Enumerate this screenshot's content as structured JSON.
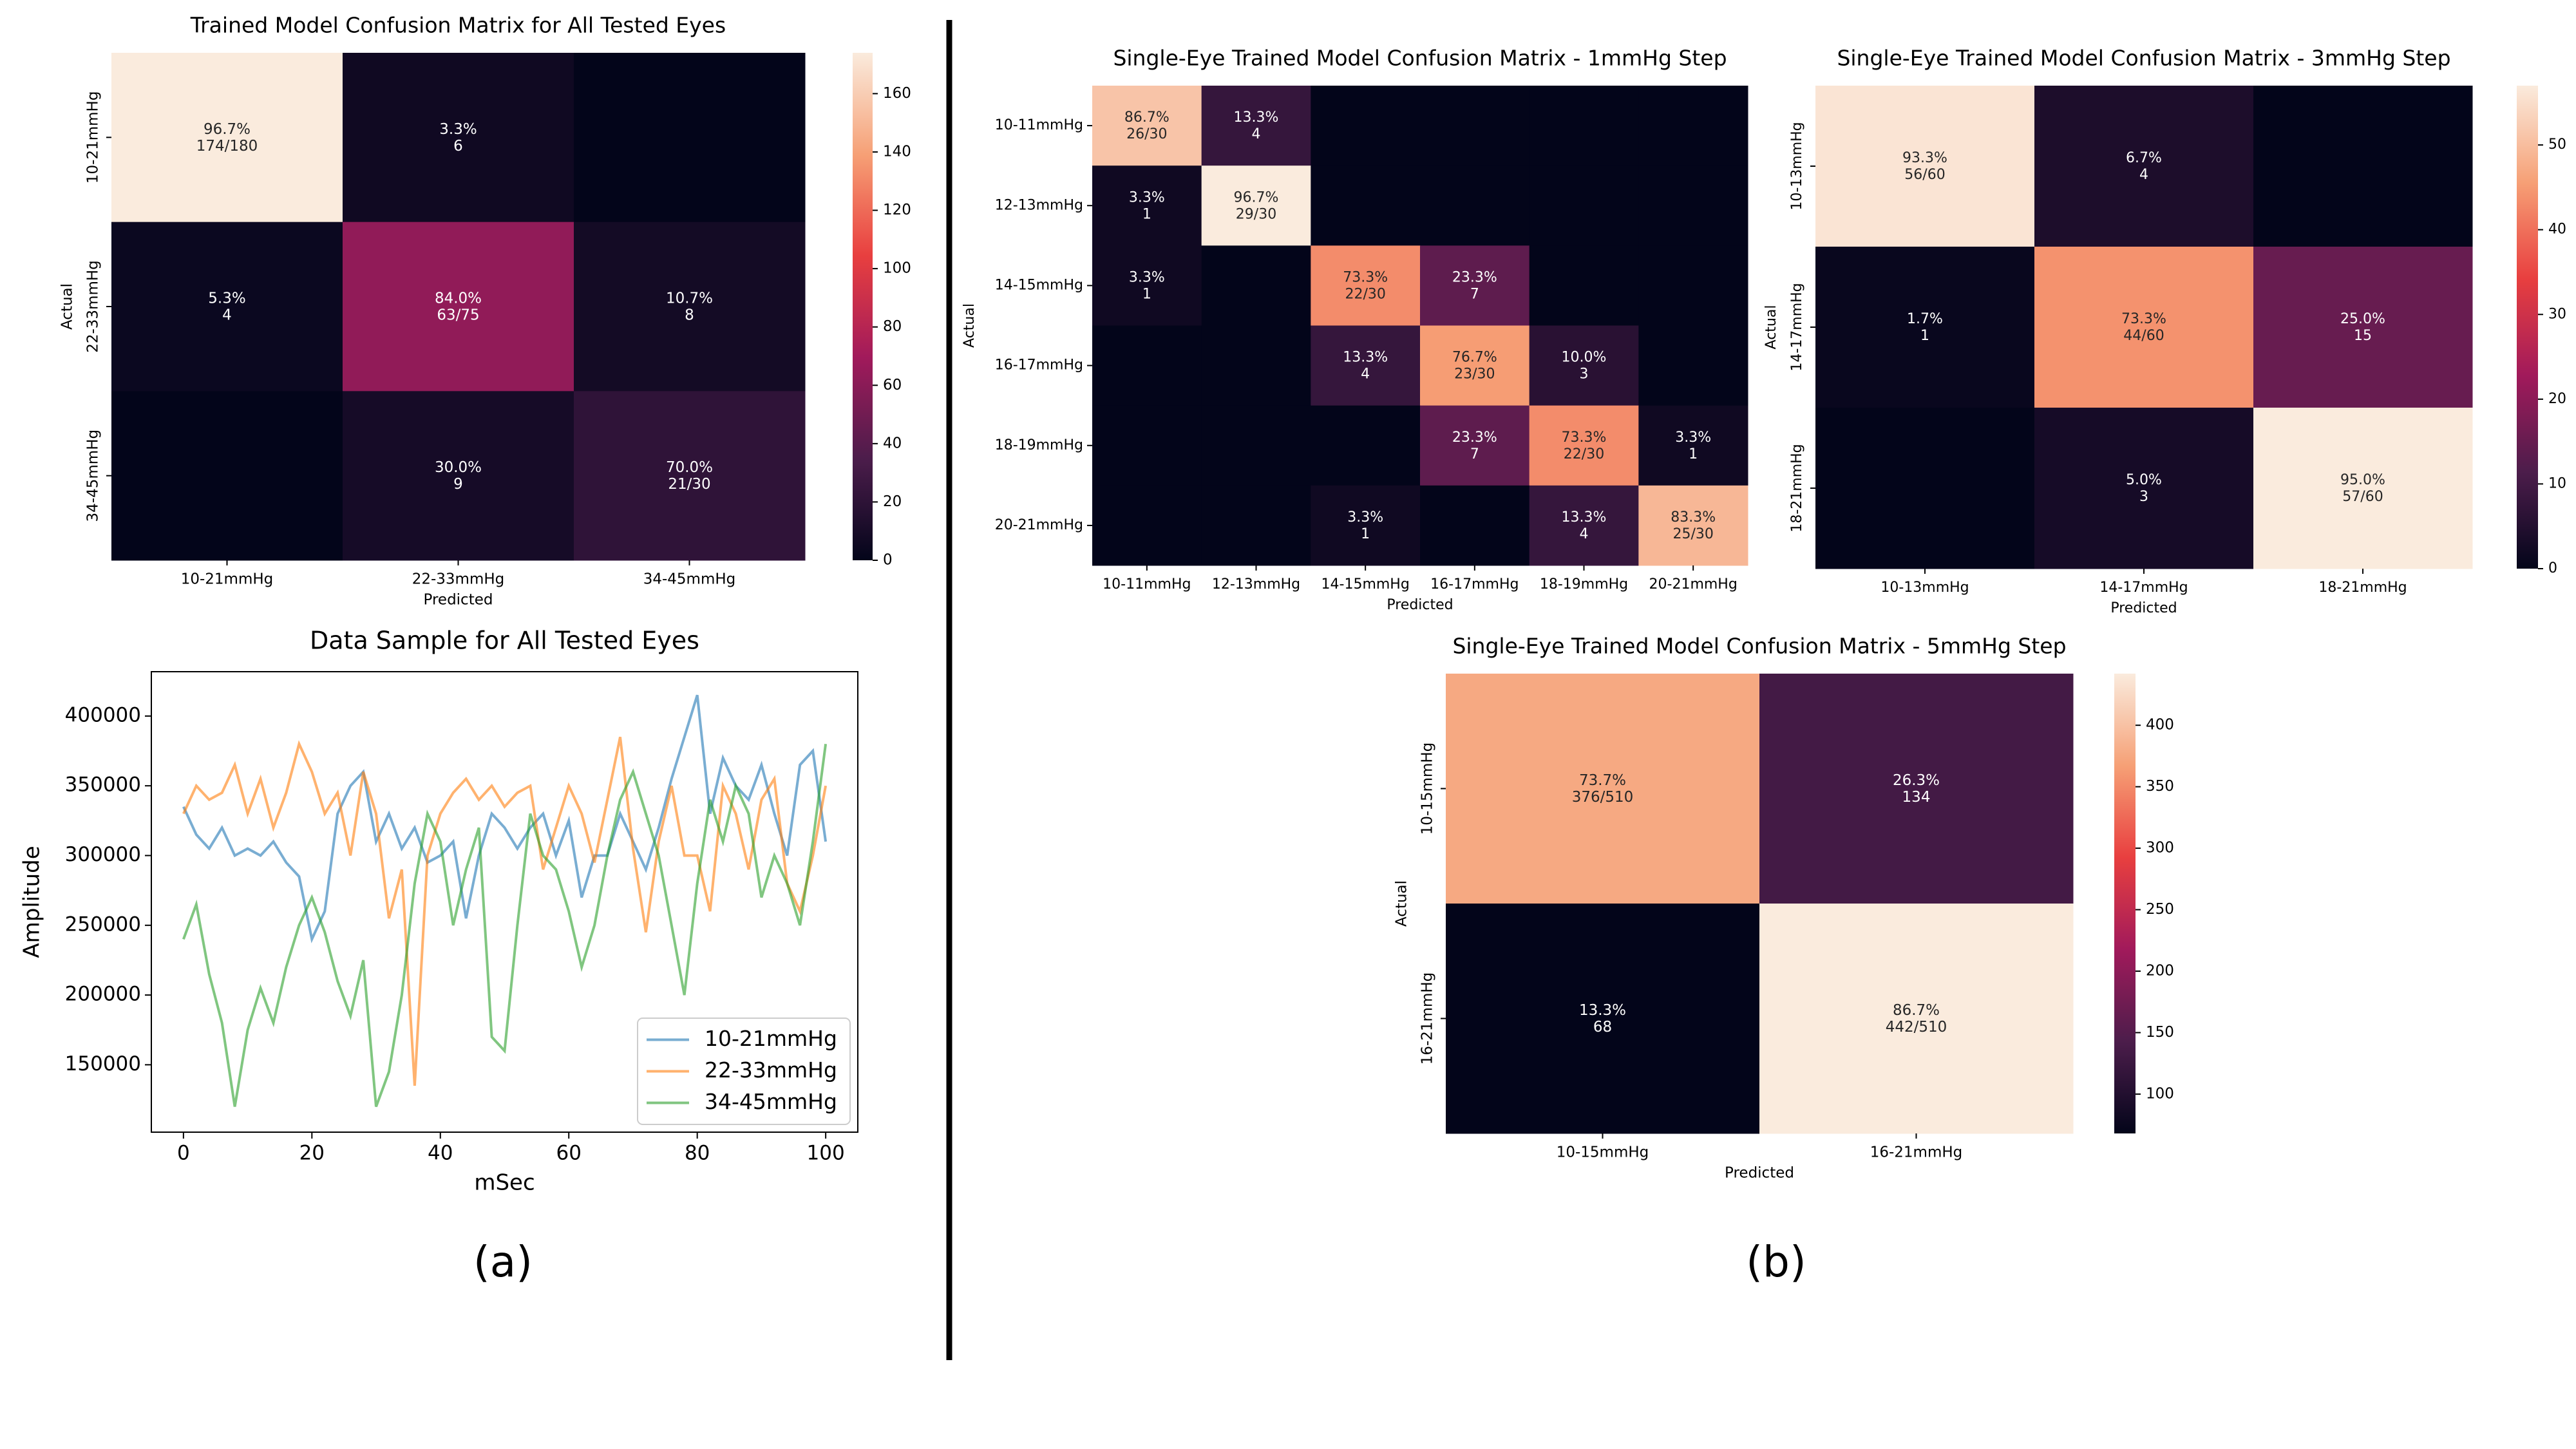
{
  "chart_data": [
    {
      "type": "heatmap",
      "title": "Trained Model Confusion Matrix for All Tested Eyes",
      "xlabel": "Predicted",
      "ylabel": "Actual",
      "x_categories": [
        "10-21mmHg",
        "22-33mmHg",
        "34-45mmHg"
      ],
      "y_categories": [
        "10-21mmHg",
        "22-33mmHg",
        "34-45mmHg"
      ],
      "values": [
        [
          174,
          6,
          0
        ],
        [
          4,
          63,
          8
        ],
        [
          0,
          9,
          21
        ]
      ],
      "value_labels": [
        [
          "174/180",
          "6",
          null
        ],
        [
          "4",
          "63/75",
          "8"
        ],
        [
          null,
          "9",
          "21/30"
        ]
      ],
      "percent_labels": [
        [
          "96.7%",
          "3.3%",
          null
        ],
        [
          "5.3%",
          "84.0%",
          "10.7%"
        ],
        [
          null,
          "30.0%",
          "70.0%"
        ]
      ],
      "colormap": "rocket",
      "clim": [
        0,
        174
      ],
      "cticks": [
        0,
        20,
        40,
        60,
        80,
        100,
        120,
        140,
        160
      ],
      "colorbar": true,
      "ytick_rotation": 90
    },
    {
      "type": "line",
      "title": "Data Sample for All Tested Eyes",
      "xlabel": "mSec",
      "ylabel": "Amplitude",
      "x": [
        0,
        2,
        4,
        6,
        8,
        10,
        12,
        14,
        16,
        18,
        20,
        22,
        24,
        26,
        28,
        30,
        32,
        34,
        36,
        38,
        40,
        42,
        44,
        46,
        48,
        50,
        52,
        54,
        56,
        58,
        60,
        62,
        64,
        66,
        68,
        70,
        72,
        74,
        76,
        78,
        80,
        82,
        84,
        86,
        88,
        90,
        92,
        94,
        96,
        98,
        100
      ],
      "series": [
        {
          "name": "10-21mmHg",
          "color": "#1f77b4",
          "values": [
            335000,
            315000,
            305000,
            320000,
            300000,
            305000,
            300000,
            310000,
            295000,
            285000,
            240000,
            260000,
            330000,
            350000,
            360000,
            310000,
            330000,
            305000,
            320000,
            295000,
            300000,
            310000,
            255000,
            300000,
            330000,
            320000,
            305000,
            320000,
            330000,
            300000,
            325000,
            270000,
            300000,
            300000,
            330000,
            310000,
            290000,
            320000,
            355000,
            385000,
            415000,
            330000,
            370000,
            350000,
            340000,
            365000,
            330000,
            300000,
            365000,
            375000,
            310000
          ]
        },
        {
          "name": "22-33mmHg",
          "color": "#ff7f0e",
          "values": [
            330000,
            350000,
            340000,
            345000,
            365000,
            330000,
            355000,
            320000,
            345000,
            380000,
            360000,
            330000,
            345000,
            300000,
            360000,
            330000,
            255000,
            290000,
            135000,
            300000,
            330000,
            345000,
            355000,
            340000,
            350000,
            335000,
            345000,
            350000,
            290000,
            320000,
            350000,
            330000,
            295000,
            340000,
            385000,
            305000,
            245000,
            310000,
            350000,
            300000,
            300000,
            260000,
            350000,
            330000,
            290000,
            340000,
            355000,
            280000,
            260000,
            300000,
            350000
          ]
        },
        {
          "name": "34-45mmHg",
          "color": "#2ca02c",
          "values": [
            240000,
            265000,
            215000,
            180000,
            120000,
            175000,
            205000,
            180000,
            220000,
            250000,
            270000,
            245000,
            210000,
            185000,
            225000,
            120000,
            145000,
            200000,
            280000,
            330000,
            310000,
            250000,
            290000,
            320000,
            170000,
            160000,
            250000,
            330000,
            300000,
            290000,
            260000,
            220000,
            250000,
            300000,
            340000,
            360000,
            330000,
            300000,
            250000,
            200000,
            280000,
            340000,
            310000,
            350000,
            330000,
            270000,
            300000,
            280000,
            250000,
            310000,
            380000
          ]
        }
      ],
      "xlim": [
        -5,
        105
      ],
      "ylim": [
        101700,
        431800
      ],
      "xticks": [
        0,
        20,
        40,
        60,
        80,
        100
      ],
      "yticks": [
        150000,
        200000,
        250000,
        300000,
        350000,
        400000
      ],
      "legend": "lower right"
    },
    {
      "type": "heatmap",
      "title": "Single-Eye Trained Model Confusion Matrix - 1mmHg Step",
      "xlabel": "Predicted",
      "ylabel": "Actual",
      "x_categories": [
        "10-11mmHg",
        "12-13mmHg",
        "14-15mmHg",
        "16-17mmHg",
        "18-19mmHg",
        "20-21mmHg"
      ],
      "y_categories": [
        "10-11mmHg",
        "12-13mmHg",
        "14-15mmHg",
        "16-17mmHg",
        "18-19mmHg",
        "20-21mmHg"
      ],
      "values": [
        [
          26,
          4,
          0,
          0,
          0,
          0
        ],
        [
          1,
          29,
          0,
          0,
          0,
          0
        ],
        [
          1,
          0,
          22,
          7,
          0,
          0
        ],
        [
          0,
          0,
          4,
          23,
          3,
          0
        ],
        [
          0,
          0,
          0,
          7,
          22,
          1
        ],
        [
          0,
          0,
          1,
          0,
          4,
          25
        ]
      ],
      "value_labels": [
        [
          "26/30",
          "4",
          null,
          null,
          null,
          null
        ],
        [
          "1",
          "29/30",
          null,
          null,
          null,
          null
        ],
        [
          "1",
          null,
          "22/30",
          "7",
          null,
          null
        ],
        [
          null,
          null,
          "4",
          "23/30",
          "3",
          null
        ],
        [
          null,
          null,
          null,
          "7",
          "22/30",
          "1"
        ],
        [
          null,
          null,
          "1",
          null,
          "4",
          "25/30"
        ]
      ],
      "percent_labels": [
        [
          "86.7%",
          "13.3%",
          null,
          null,
          null,
          null
        ],
        [
          "3.3%",
          "96.7%",
          null,
          null,
          null,
          null
        ],
        [
          "3.3%",
          null,
          "73.3%",
          "23.3%",
          null,
          null
        ],
        [
          null,
          null,
          "13.3%",
          "76.7%",
          "10.0%",
          null
        ],
        [
          null,
          null,
          null,
          "23.3%",
          "73.3%",
          "3.3%"
        ],
        [
          null,
          null,
          "3.3%",
          null,
          "13.3%",
          "83.3%"
        ]
      ],
      "colormap": "rocket",
      "clim": [
        0,
        29
      ],
      "colorbar": false,
      "ytick_rotation": 0
    },
    {
      "type": "heatmap",
      "title": "Single-Eye Trained Model Confusion Matrix - 3mmHg Step",
      "xlabel": "Predicted",
      "ylabel": "Actual",
      "x_categories": [
        "10-13mmHg",
        "14-17mmHg",
        "18-21mmHg"
      ],
      "y_categories": [
        "10-13mmHg",
        "14-17mmHg",
        "18-21mmHg"
      ],
      "values": [
        [
          56,
          4,
          0
        ],
        [
          1,
          44,
          15
        ],
        [
          0,
          3,
          57
        ]
      ],
      "value_labels": [
        [
          "56/60",
          "4",
          null
        ],
        [
          "1",
          "44/60",
          "15"
        ],
        [
          null,
          "3",
          "57/60"
        ]
      ],
      "percent_labels": [
        [
          "93.3%",
          "6.7%",
          null
        ],
        [
          "1.7%",
          "73.3%",
          "25.0%"
        ],
        [
          null,
          "5.0%",
          "95.0%"
        ]
      ],
      "colormap": "rocket",
      "clim": [
        0,
        57
      ],
      "cticks": [
        0,
        10,
        20,
        30,
        40,
        50
      ],
      "colorbar": true,
      "ytick_rotation": 90
    },
    {
      "type": "heatmap",
      "title": "Single-Eye Trained Model Confusion Matrix - 5mmHg Step",
      "xlabel": "Predicted",
      "ylabel": "Actual",
      "x_categories": [
        "10-15mmHg",
        "16-21mmHg"
      ],
      "y_categories": [
        "10-15mmHg",
        "16-21mmHg"
      ],
      "values": [
        [
          376,
          134
        ],
        [
          68,
          442
        ]
      ],
      "value_labels": [
        [
          "376/510",
          "134"
        ],
        [
          "68",
          "442/510"
        ]
      ],
      "percent_labels": [
        [
          "73.7%",
          "26.3%"
        ],
        [
          "13.3%",
          "86.7%"
        ]
      ],
      "colormap": "rocket",
      "clim": [
        68,
        442
      ],
      "cticks": [
        100,
        150,
        200,
        250,
        300,
        350,
        400
      ],
      "colorbar": true,
      "ytick_rotation": 90
    }
  ],
  "panel_labels": [
    "(a)",
    "(b)"
  ]
}
